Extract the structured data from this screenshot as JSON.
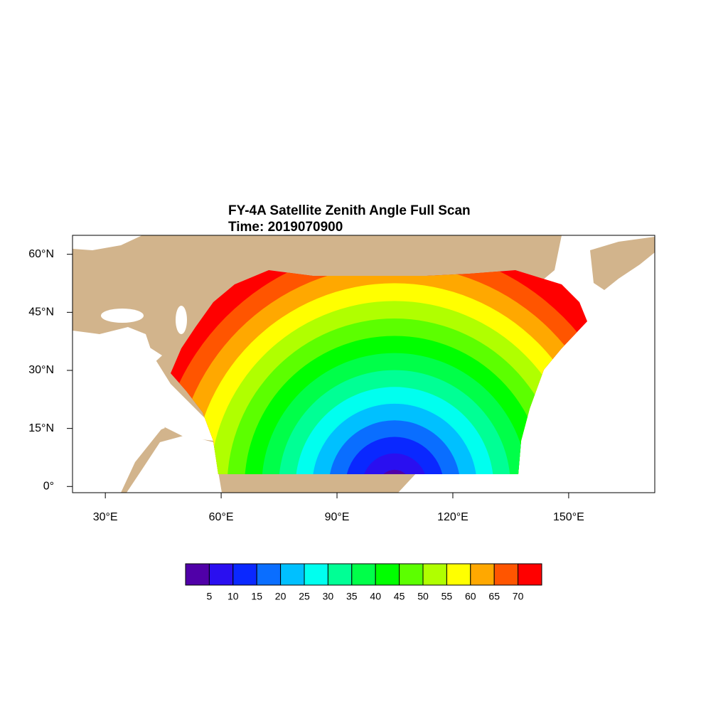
{
  "chart_data": {
    "type": "map",
    "title": "FY-4A Satellite Zenith Angle Full Scan",
    "subtitle": "Time: 2019070900",
    "xlim": [
      21.5,
      172.3
    ],
    "ylim": [
      -1.6,
      64.9
    ],
    "xticks": [
      {
        "value": 30,
        "label": "30°E"
      },
      {
        "value": 60,
        "label": "60°E"
      },
      {
        "value": 90,
        "label": "90°E"
      },
      {
        "value": 120,
        "label": "120°E"
      },
      {
        "value": 150,
        "label": "150°E"
      }
    ],
    "yticks": [
      {
        "value": 0,
        "label": "0°"
      },
      {
        "value": 15,
        "label": "15°N"
      },
      {
        "value": 30,
        "label": "30°N"
      },
      {
        "value": 45,
        "label": "45°N"
      },
      {
        "value": 60,
        "label": "60°N"
      }
    ],
    "levels": [
      5,
      10,
      15,
      20,
      25,
      30,
      35,
      40,
      45,
      50,
      55,
      60,
      65,
      70
    ],
    "colors": [
      "#5000a8",
      "#2a0ff0",
      "#0a28ff",
      "#0a6eff",
      "#00c0ff",
      "#00ffef",
      "#00ff95",
      "#00ff49",
      "#00ff00",
      "#5cff00",
      "#b0ff00",
      "#ffff00",
      "#ffa800",
      "#ff5500",
      "#ff0000"
    ]
  }
}
